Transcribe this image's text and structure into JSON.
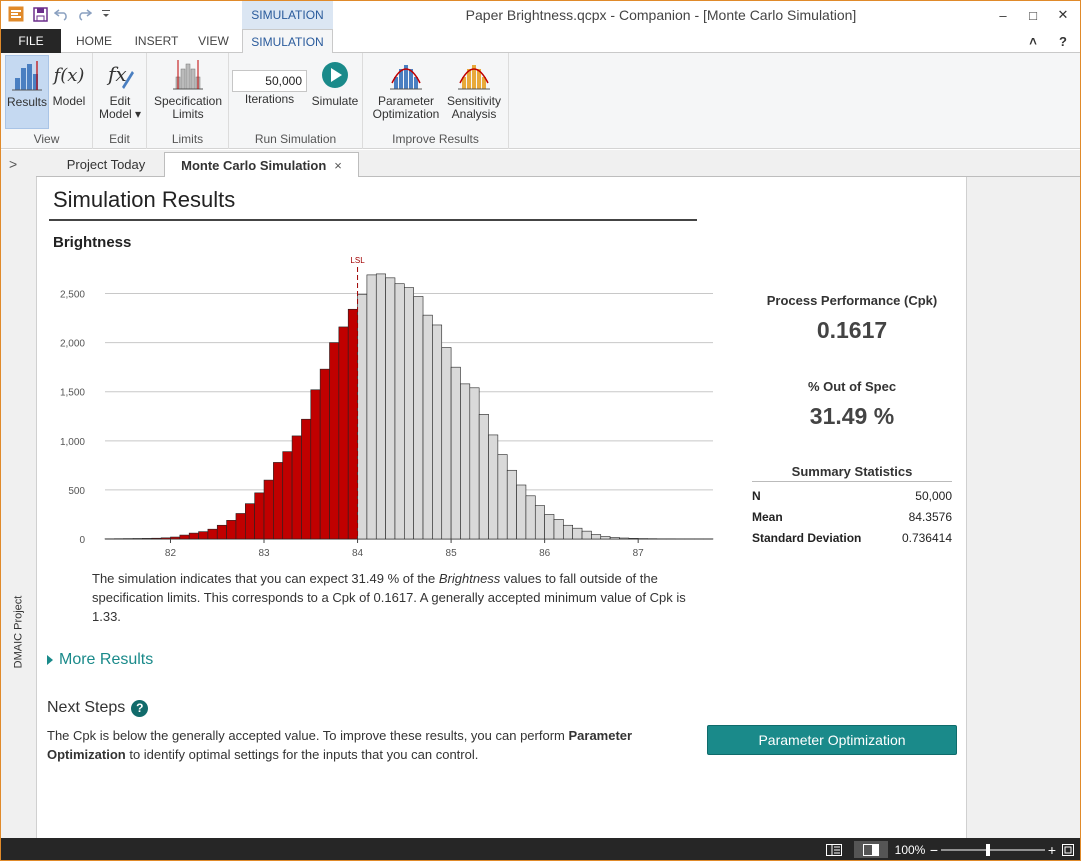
{
  "titlebar": {
    "context_tab": "SIMULATION",
    "title": "Paper Brightness.qcpx - Companion - [Monte Carlo Simulation]",
    "minimize": "–",
    "maximize": "□",
    "close": "✕",
    "collapse_ribbon": "˄",
    "help": "?"
  },
  "ribbon_tabs": [
    "FILE",
    "HOME",
    "INSERT",
    "VIEW",
    "SIMULATION"
  ],
  "ribbon": {
    "groups": [
      {
        "label": "View",
        "buttons": [
          "Results",
          "Model"
        ]
      },
      {
        "label": "Edit",
        "buttons": [
          "Edit Model"
        ]
      },
      {
        "label": "Limits",
        "buttons": [
          "Specification Limits"
        ]
      },
      {
        "label": "Run Simulation",
        "buttons": [
          "Iterations",
          "Simulate"
        ]
      },
      {
        "label": "Improve Results",
        "buttons": [
          "Parameter Optimization",
          "Sensitivity Analysis"
        ]
      }
    ],
    "results_label": "Results",
    "model_label": "Model",
    "model_glyph": "f(x)",
    "edit_model_line1": "Edit",
    "edit_model_line2": "Model",
    "spec_limits_line1": "Specification",
    "spec_limits_line2": "Limits",
    "iterations_value": "50,000",
    "iterations_label": "Iterations",
    "simulate_label": "Simulate",
    "param_opt_line1": "Parameter",
    "param_opt_line2": "Optimization",
    "sens_line1": "Sensitivity",
    "sens_line2": "Analysis"
  },
  "side": {
    "label": "DMAIC Project",
    "expand": ">"
  },
  "doc_tabs": {
    "project": "Project Today",
    "active": "Monte Carlo Simulation",
    "close": "×"
  },
  "content": {
    "title": "Simulation Results",
    "chart_title": "Brightness",
    "sim_text_before": "The simulation indicates that you can expect 31.49 % of the ",
    "sim_text_italic": "Brightness",
    "sim_text_after": " values to fall outside of the specification limits. This corresponds to a Cpk of 0.1617. A generally accepted minimum value of Cpk is 1.33.",
    "more_results": "More Results",
    "next_steps_title": "Next Steps",
    "next_steps_before": "The Cpk is below the generally accepted value. To improve these results, you can perform ",
    "next_steps_bold": "Parameter Optimization",
    "next_steps_after": " to identify optimal settings for the inputs that you can control.",
    "button_label": "Parameter Optimization"
  },
  "metrics": {
    "cpk_title": "Process Performance (Cpk)",
    "cpk_value": "0.1617",
    "oos_title": "% Out of Spec",
    "oos_value": "31.49 %"
  },
  "summary": {
    "title": "Summary Statistics",
    "rows": [
      {
        "label": "N",
        "value": "50,000"
      },
      {
        "label": "Mean",
        "value": "84.3576"
      },
      {
        "label": "Standard Deviation",
        "value": "0.736414"
      }
    ]
  },
  "statusbar": {
    "zoom": "100%",
    "minus": "−",
    "plus": "+"
  },
  "colors": {
    "accent": "#1a8a8a",
    "out_of_spec": "#c00000",
    "in_spec": "#d9d9d9",
    "file_tab": "#262626"
  },
  "chart_data": {
    "type": "bar",
    "title": "Brightness",
    "xlim": [
      81.3,
      87.8
    ],
    "ylim": [
      0,
      2750
    ],
    "xticks": [
      82,
      83,
      84,
      85,
      86,
      87
    ],
    "yticks": [
      0,
      500,
      1000,
      1500,
      2000,
      2500
    ],
    "ytick_labels": [
      "0",
      "500",
      "1,000",
      "1,500",
      "2,000",
      "2,500"
    ],
    "lsl": 84,
    "lsl_label": "LSL",
    "bin_width": 0.1,
    "bin_starts": [
      81.3,
      81.4,
      81.5,
      81.6,
      81.7,
      81.8,
      81.9,
      82.0,
      82.1,
      82.2,
      82.3,
      82.4,
      82.5,
      82.6,
      82.7,
      82.8,
      82.9,
      83.0,
      83.1,
      83.2,
      83.3,
      83.4,
      83.5,
      83.6,
      83.7,
      83.8,
      83.9,
      84.0,
      84.1,
      84.2,
      84.3,
      84.4,
      84.5,
      84.6,
      84.7,
      84.8,
      84.9,
      85.0,
      85.1,
      85.2,
      85.3,
      85.4,
      85.5,
      85.6,
      85.7,
      85.8,
      85.9,
      86.0,
      86.1,
      86.2,
      86.3,
      86.4,
      86.5,
      86.6,
      86.7,
      86.8,
      86.9,
      87.0,
      87.1,
      87.2,
      87.3,
      87.4,
      87.5,
      87.6,
      87.7
    ],
    "values": [
      2,
      3,
      4,
      5,
      6,
      8,
      12,
      20,
      40,
      60,
      75,
      100,
      140,
      190,
      260,
      360,
      470,
      600,
      780,
      890,
      1050,
      1220,
      1520,
      1730,
      2000,
      2160,
      2340,
      2490,
      2690,
      2700,
      2660,
      2600,
      2560,
      2470,
      2280,
      2180,
      1950,
      1750,
      1580,
      1540,
      1270,
      1060,
      860,
      700,
      550,
      440,
      340,
      250,
      200,
      140,
      110,
      80,
      45,
      25,
      15,
      10,
      6,
      4,
      3,
      2,
      2,
      1,
      1,
      1,
      1
    ],
    "series": [
      {
        "name": "Brightness",
        "out_of_spec_color": "#c00000",
        "in_spec_color": "#d9d9d9"
      }
    ]
  }
}
